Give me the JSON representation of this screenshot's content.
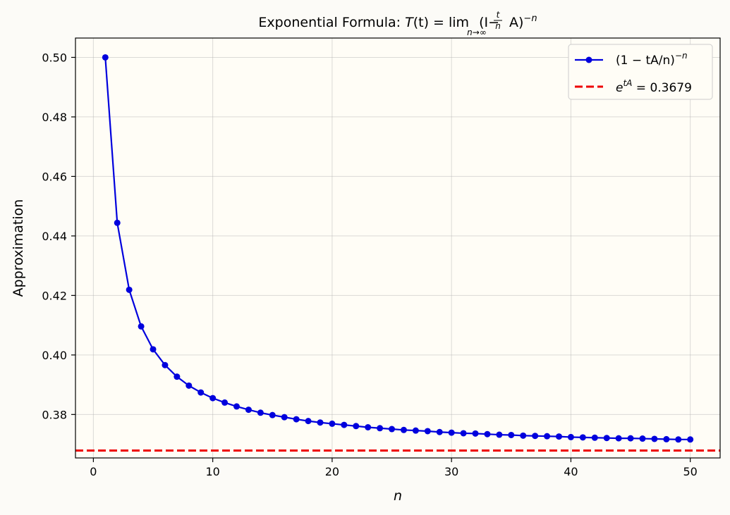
{
  "chart_data": {
    "type": "line",
    "title": {
      "prefix": "Exponential Formula: ",
      "T": "T",
      "t_arg": "(t)",
      "eq": " = ",
      "lim": "lim",
      "lim_sub": "n→∞",
      "open": "(I−",
      "frac_num": "t",
      "frac_den": "n",
      "close": "A)",
      "sup": "−n"
    },
    "xlabel": "n",
    "ylabel": "Approximation",
    "xlim": [
      -1.5,
      52.5
    ],
    "ylim": [
      0.3654,
      0.5065
    ],
    "xticks": [
      0,
      10,
      20,
      30,
      40,
      50
    ],
    "xtick_labels": [
      "0",
      "10",
      "20",
      "30",
      "40",
      "50"
    ],
    "yticks": [
      0.38,
      0.4,
      0.42,
      0.44,
      0.46,
      0.48,
      0.5
    ],
    "ytick_labels": [
      "0.38",
      "0.40",
      "0.42",
      "0.44",
      "0.46",
      "0.48",
      "0.50"
    ],
    "grid": true,
    "legend_position": "top-right",
    "legend": [
      {
        "label_base": "(1 − tA/n)",
        "label_sup": "−n",
        "style": "line-marker"
      },
      {
        "label_base": "e",
        "label_sup": "tA",
        "label_tail": " = 0.3679",
        "style": "dashed"
      }
    ],
    "series": [
      {
        "x": [
          1,
          2,
          3,
          4,
          5,
          6,
          7,
          8,
          9,
          10,
          11,
          12,
          13,
          14,
          15,
          16,
          17,
          18,
          19,
          20,
          21,
          22,
          23,
          24,
          25,
          26,
          27,
          28,
          29,
          30,
          31,
          32,
          33,
          34,
          35,
          36,
          37,
          38,
          39,
          40,
          41,
          42,
          43,
          44,
          45,
          46,
          47,
          48,
          49,
          50
        ],
        "values": [
          0.5,
          0.4444,
          0.4219,
          0.4096,
          0.4019,
          0.3966,
          0.3927,
          0.3897,
          0.3874,
          0.3855,
          0.384,
          0.3827,
          0.3816,
          0.3806,
          0.3798,
          0.3791,
          0.3784,
          0.3778,
          0.3773,
          0.3769,
          0.3765,
          0.3761,
          0.3757,
          0.3754,
          0.3751,
          0.3748,
          0.3746,
          0.3744,
          0.3741,
          0.3739,
          0.3737,
          0.3736,
          0.3734,
          0.3732,
          0.3731,
          0.3729,
          0.3728,
          0.3727,
          0.3726,
          0.3724,
          0.3723,
          0.3722,
          0.3721,
          0.372,
          0.372,
          0.3719,
          0.3718,
          0.3717,
          0.3716,
          0.3716
        ],
        "color": "#0000dd"
      }
    ],
    "reference_line": {
      "y": 0.3679,
      "color": "#ee0000",
      "style": "dashed"
    }
  }
}
